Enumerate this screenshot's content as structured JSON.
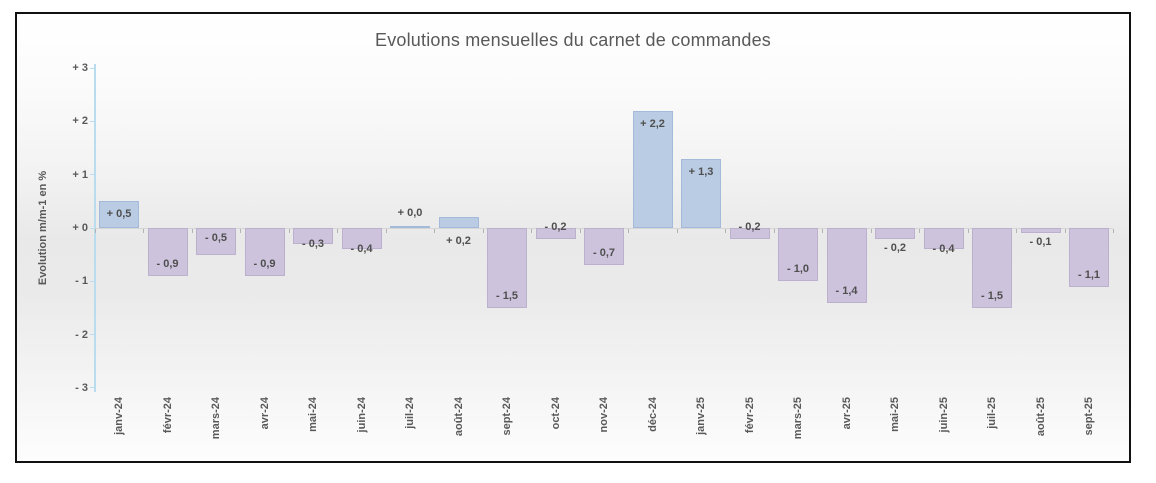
{
  "chart_data": {
    "type": "bar",
    "title": "Evolutions mensuelles du carnet de commandes",
    "xlabel": "",
    "ylabel": "Evolution m/m-1 en %",
    "ylim": [
      -3,
      3
    ],
    "grid": "off",
    "legend": "none",
    "yticks": [
      {
        "v": 3,
        "label": "+ 3"
      },
      {
        "v": 2,
        "label": "+ 2"
      },
      {
        "v": 1,
        "label": "+ 1"
      },
      {
        "v": 0,
        "label": "+ 0"
      },
      {
        "v": -1,
        "label": "- 1"
      },
      {
        "v": -2,
        "label": "- 2"
      },
      {
        "v": -3,
        "label": "- 3"
      }
    ],
    "categories": [
      "janv-24",
      "févr-24",
      "mars-24",
      "avr-24",
      "mai-24",
      "juin-24",
      "juil-24",
      "août-24",
      "sept-24",
      "oct-24",
      "nov-24",
      "déc-24",
      "janv-25",
      "févr-25",
      "mars-25",
      "avr-25",
      "mai-25",
      "juin-25",
      "juil-25",
      "août-25",
      "sept-25"
    ],
    "values": [
      0.5,
      -0.9,
      -0.5,
      -0.9,
      -0.3,
      -0.4,
      0.0,
      0.2,
      -1.5,
      -0.2,
      -0.7,
      2.2,
      1.3,
      -0.2,
      -1.0,
      -1.4,
      -0.2,
      -0.4,
      -1.5,
      -0.1,
      -1.1
    ],
    "value_labels": [
      "+ 0,5",
      "- 0,9",
      "- 0,5",
      "- 0,9",
      "- 0,3",
      "- 0,4",
      "+ 0,0",
      "+ 0,2",
      "- 1,5",
      "- 0,2",
      "- 0,7",
      "+ 2,2",
      "+ 1,3",
      "- 0,2",
      "- 1,0",
      "- 1,4",
      "- 0,2",
      "- 0,4",
      "- 1,5",
      "- 0,1",
      "- 1,1"
    ],
    "label_placements": [
      "inside-top",
      "inside-bottom",
      "inside-top",
      "inside-bottom",
      "end",
      "end",
      "above",
      "axis-below",
      "inside-bottom",
      "axis-above",
      "inside-bottom",
      "inside-top",
      "inside-top",
      "axis-above",
      "inside-bottom",
      "inside-bottom",
      "below",
      "end",
      "inside-bottom",
      "below",
      "inside-bottom"
    ],
    "colors": {
      "positive_fill": "#b9cce3",
      "negative_fill": "#cdc3dc",
      "y_axis_line": "#b9dcee",
      "category_axis_line": "#d6d6d6",
      "tick": "#b3b3b3",
      "text": "#595959",
      "data_label_text": "#4f4f4f"
    }
  }
}
